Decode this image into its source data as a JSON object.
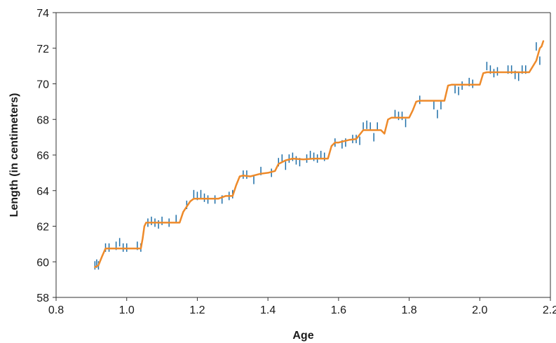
{
  "chart_data": {
    "type": "line",
    "title": "",
    "xlabel": "Age",
    "ylabel": "Length (in centimeters)",
    "xlim": [
      0.8,
      2.2
    ],
    "ylim": [
      58,
      74
    ],
    "xticks": [
      0.8,
      1.0,
      1.2,
      1.4,
      1.6,
      1.8,
      2.0,
      2.2
    ],
    "xtick_labels": [
      "0.8",
      "1.0",
      "1.2",
      "1.4",
      "1.6",
      "1.8",
      "2.0",
      "2.2"
    ],
    "yticks": [
      58,
      60,
      62,
      64,
      66,
      68,
      70,
      72,
      74
    ],
    "ytick_labels": [
      "58",
      "60",
      "62",
      "64",
      "66",
      "68",
      "70",
      "72",
      "74"
    ],
    "grid": false,
    "legend": "none",
    "colors": {
      "fit": "#ee8a2a",
      "measurements": "#1f6fa8"
    },
    "series": [
      {
        "kind": "fit-line",
        "x": [
          0.91,
          0.92,
          0.93,
          0.94,
          1.04,
          1.045,
          1.05,
          1.055,
          1.06,
          1.15,
          1.16,
          1.17,
          1.18,
          1.19,
          1.26,
          1.28,
          1.3,
          1.31,
          1.32,
          1.33,
          1.35,
          1.38,
          1.4,
          1.42,
          1.43,
          1.45,
          1.47,
          1.5,
          1.53,
          1.57,
          1.58,
          1.59,
          1.6,
          1.63,
          1.65,
          1.67,
          1.68,
          1.72,
          1.73,
          1.74,
          1.75,
          1.76,
          1.8,
          1.81,
          1.82,
          1.83,
          1.9,
          1.91,
          1.92,
          2.0,
          2.01,
          2.02,
          2.14,
          2.16,
          2.17,
          2.175,
          2.18
        ],
        "y": [
          59.7,
          59.8,
          60.3,
          60.75,
          60.75,
          61.3,
          62.0,
          62.2,
          62.2,
          62.2,
          62.8,
          63.1,
          63.4,
          63.55,
          63.55,
          63.7,
          63.7,
          64.3,
          64.8,
          64.85,
          64.8,
          64.95,
          65.0,
          65.1,
          65.5,
          65.7,
          65.8,
          65.75,
          65.8,
          65.8,
          66.5,
          66.7,
          66.7,
          66.85,
          66.9,
          67.4,
          67.4,
          67.4,
          67.2,
          68.0,
          68.1,
          68.1,
          68.1,
          68.5,
          69.0,
          69.05,
          69.05,
          69.9,
          69.95,
          69.95,
          70.6,
          70.65,
          70.65,
          71.3,
          72.0,
          72.1,
          72.4
        ]
      },
      {
        "kind": "measurement-ticks",
        "x": [
          0.91,
          0.915,
          0.92,
          0.94,
          0.95,
          0.97,
          0.98,
          0.99,
          1.0,
          1.03,
          1.04,
          1.06,
          1.07,
          1.08,
          1.09,
          1.1,
          1.12,
          1.14,
          1.17,
          1.19,
          1.2,
          1.21,
          1.22,
          1.23,
          1.25,
          1.27,
          1.29,
          1.3,
          1.33,
          1.34,
          1.36,
          1.38,
          1.41,
          1.43,
          1.44,
          1.45,
          1.46,
          1.47,
          1.48,
          1.49,
          1.51,
          1.52,
          1.53,
          1.54,
          1.55,
          1.56,
          1.59,
          1.61,
          1.62,
          1.64,
          1.65,
          1.66,
          1.67,
          1.68,
          1.69,
          1.7,
          1.71,
          1.76,
          1.77,
          1.78,
          1.79,
          1.83,
          1.87,
          1.88,
          1.89,
          1.93,
          1.94,
          1.95,
          1.97,
          1.98,
          2.02,
          2.03,
          2.04,
          2.05,
          2.08,
          2.09,
          2.1,
          2.11,
          2.12,
          2.13,
          2.16,
          2.17
        ],
        "y": [
          59.8,
          59.9,
          59.8,
          60.8,
          60.8,
          60.9,
          61.1,
          60.8,
          60.8,
          60.9,
          60.8,
          62.2,
          62.3,
          62.2,
          62.1,
          62.3,
          62.2,
          62.4,
          63.2,
          63.8,
          63.7,
          63.8,
          63.6,
          63.5,
          63.5,
          63.5,
          63.7,
          63.8,
          64.9,
          64.9,
          64.6,
          65.1,
          65.0,
          65.6,
          65.8,
          65.4,
          65.8,
          65.9,
          65.7,
          65.6,
          65.8,
          66.0,
          65.9,
          65.8,
          66.0,
          65.9,
          66.7,
          66.6,
          66.7,
          66.9,
          66.9,
          66.8,
          67.6,
          67.7,
          67.6,
          67.0,
          67.6,
          68.3,
          68.2,
          68.2,
          67.8,
          69.1,
          68.8,
          68.3,
          68.8,
          69.7,
          69.6,
          69.9,
          70.1,
          70.0,
          71.0,
          70.8,
          70.6,
          70.7,
          70.8,
          70.8,
          70.5,
          70.4,
          70.8,
          70.8,
          72.1,
          71.3
        ]
      }
    ]
  }
}
